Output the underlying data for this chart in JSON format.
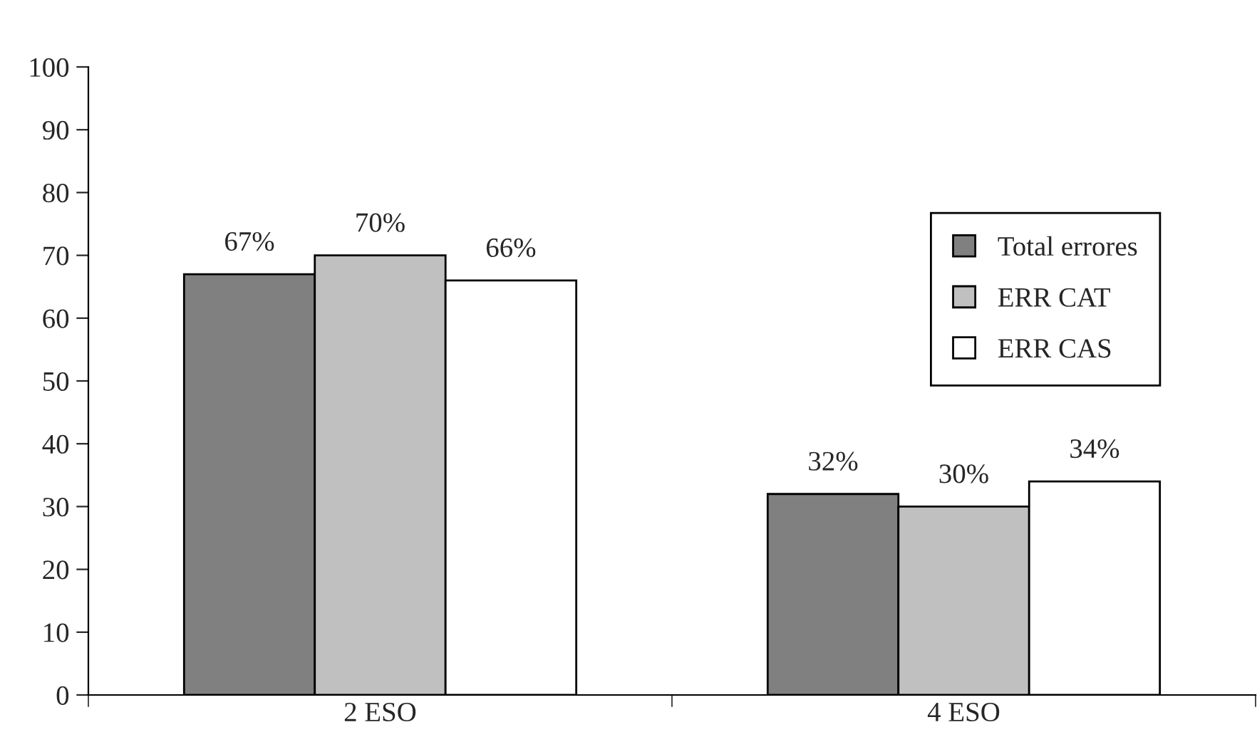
{
  "chart_data": {
    "type": "bar",
    "categories": [
      "2 ESO",
      "4 ESO"
    ],
    "series": [
      {
        "name": "Total errores",
        "color": "#808080",
        "values": [
          67,
          32
        ],
        "value_labels": [
          "67%",
          "32%"
        ]
      },
      {
        "name": "ERR CAT",
        "color": "#c0c0c0",
        "values": [
          70,
          30
        ],
        "value_labels": [
          "70%",
          "30%"
        ]
      },
      {
        "name": "ERR CAS",
        "color": "#ffffff",
        "values": [
          66,
          34
        ],
        "value_labels": [
          "66%",
          "34%"
        ]
      }
    ],
    "ylim": [
      0,
      100
    ],
    "yticks": [
      0,
      10,
      20,
      30,
      40,
      50,
      60,
      70,
      80,
      90,
      100
    ],
    "grid": false,
    "legend": "right"
  }
}
